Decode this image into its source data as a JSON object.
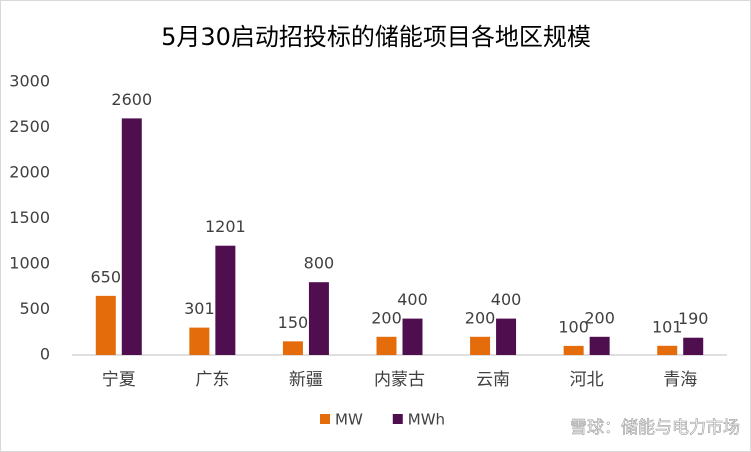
{
  "chart_data": {
    "type": "bar",
    "title": "5月30启动招投标的储能项目各地区规模",
    "categories": [
      "宁夏",
      "广东",
      "新疆",
      "内蒙古",
      "云南",
      "河北",
      "青海"
    ],
    "series": [
      {
        "name": "MW",
        "color": "#e46c0a",
        "values": [
          650,
          301,
          150,
          200,
          200,
          100,
          101
        ]
      },
      {
        "name": "MWh",
        "color": "#4f0f4f",
        "values": [
          2600,
          1201,
          800,
          400,
          400,
          200,
          190
        ]
      }
    ],
    "ylim": [
      0,
      3000
    ],
    "yticks": [
      0,
      500,
      1000,
      1500,
      2000,
      2500,
      3000
    ],
    "grid": false,
    "legend": "bottom",
    "watermark": "雪球：储能与电力市场"
  }
}
